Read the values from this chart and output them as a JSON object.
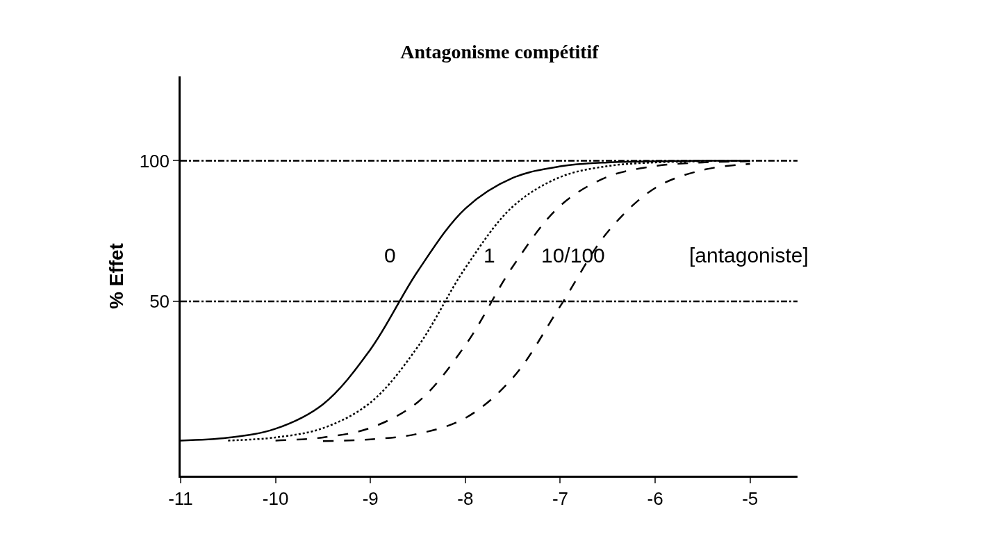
{
  "chart_data": {
    "type": "line",
    "title": "Antagonisme compétitif",
    "ylabel": "% Effet",
    "xlim": [
      -11,
      -4.5
    ],
    "xticks": [
      -11,
      -10,
      -9,
      -8,
      -7,
      -6,
      -5
    ],
    "ylim": [
      -12,
      130
    ],
    "yticks": [
      50,
      100
    ],
    "marker": "none",
    "series": [
      {
        "color": "#000000",
        "line_style": "solid",
        "x": [
          -11,
          -10.5,
          -10,
          -9.5,
          -9,
          -8.5,
          -8,
          -7.5,
          -7,
          -6.5,
          -6,
          -5.5,
          -5
        ],
        "values": [
          0.5,
          1.5,
          4.7,
          13.4,
          32.9,
          60.8,
          83,
          93.9,
          98,
          99.4,
          99.8,
          100,
          100
        ]
      },
      {
        "color": "#000000",
        "line_style": "dotted",
        "x": [
          -10.5,
          -10,
          -9.5,
          -9,
          -8.5,
          -8,
          -7.5,
          -7,
          -6.5,
          -6,
          -5.5
        ],
        "values": [
          0.5,
          1.6,
          4.9,
          14,
          33.9,
          61.9,
          83.7,
          94.2,
          98.1,
          99.4,
          99.8
        ]
      },
      {
        "color": "#000000",
        "line_style": "dashed",
        "x": [
          -10,
          -9.5,
          -9,
          -8.5,
          -8,
          -7.5,
          -7,
          -6.5,
          -6,
          -5.5,
          -5
        ],
        "values": [
          0.5,
          1.6,
          5,
          14.2,
          34.4,
          62.4,
          84,
          94.3,
          98.1,
          99.4,
          99.8
        ]
      },
      {
        "color": "#000000",
        "line_style": "dashed",
        "x": [
          -9.5,
          -9,
          -8.5,
          -8,
          -7.5,
          -7,
          -6.5,
          -6,
          -5.5,
          -5
        ],
        "values": [
          0.3,
          0.9,
          2.9,
          8.5,
          22.8,
          48.3,
          74.7,
          90.3,
          96.7,
          98.9
        ]
      }
    ],
    "ref_lines": [
      {
        "axis": "y",
        "value": 100,
        "color": "#000000",
        "line_style": "dashed"
      },
      {
        "axis": "y",
        "value": 50,
        "color": "#000000",
        "line_style": "dashed"
      }
    ],
    "annotations": [
      "0",
      "1",
      "10/100",
      "[antagoniste]"
    ]
  }
}
